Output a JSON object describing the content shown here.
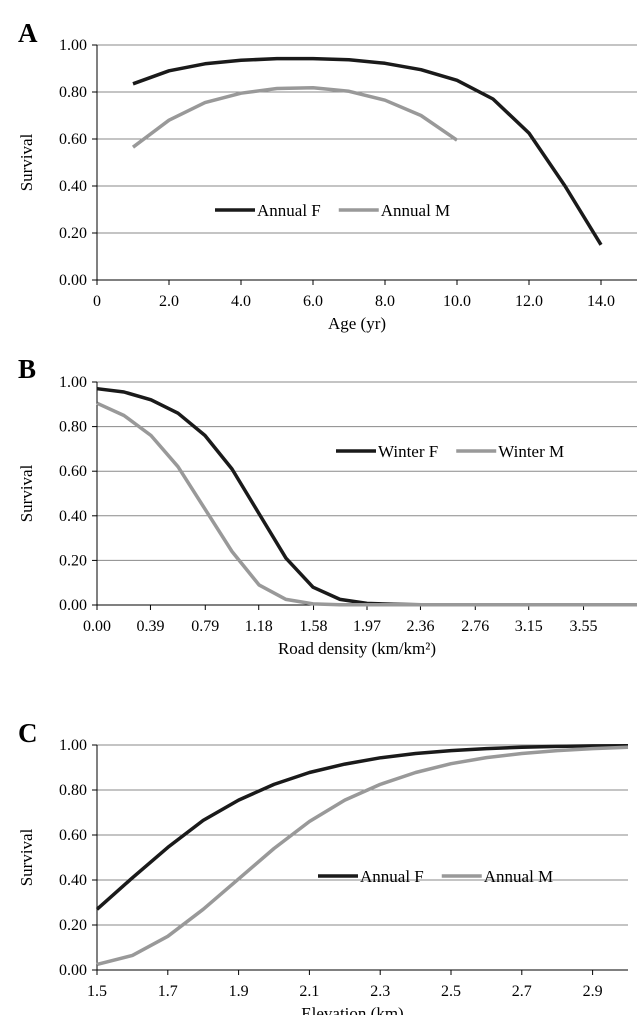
{
  "colors": {
    "female": "#1a1a1a",
    "male": "#999999",
    "grid": "#8a8a8a",
    "axis": "#000000"
  },
  "chart_data": [
    {
      "panel_label": "A",
      "type": "line",
      "xlabel": "Age (yr)",
      "ylabel": "Survival",
      "xlim": [
        0,
        15
      ],
      "ylim": [
        0,
        1
      ],
      "x_tick_values": [
        0,
        2,
        4,
        6,
        8,
        10,
        12,
        14
      ],
      "x_tick_labels": [
        "0",
        "2.0",
        "4.0",
        "6.0",
        "8.0",
        "10.0",
        "12.0",
        "14.0"
      ],
      "y_tick_values": [
        0,
        0.2,
        0.4,
        0.6,
        0.8,
        1.0
      ],
      "y_tick_labels": [
        "0.00",
        "0.20",
        "0.40",
        "0.60",
        "0.80",
        "1.00"
      ],
      "grid": true,
      "legend_position": "center",
      "series": [
        {
          "name": "Annual F",
          "color": "#1a1a1a",
          "x": [
            1,
            2,
            3,
            4,
            5,
            6,
            7,
            8,
            9,
            10,
            11,
            12,
            13,
            14
          ],
          "y": [
            0.835,
            0.89,
            0.92,
            0.935,
            0.942,
            0.942,
            0.937,
            0.922,
            0.895,
            0.85,
            0.77,
            0.625,
            0.4,
            0.15
          ]
        },
        {
          "name": "Annual M",
          "color": "#999999",
          "x": [
            1,
            2,
            3,
            4,
            5,
            6,
            7,
            8,
            9,
            10
          ],
          "y": [
            0.565,
            0.68,
            0.755,
            0.795,
            0.815,
            0.818,
            0.803,
            0.765,
            0.7,
            0.595
          ]
        }
      ]
    },
    {
      "panel_label": "B",
      "type": "line",
      "xlabel": "Road density (km/km²)",
      "ylabel": "Survival",
      "xlim": [
        0,
        3.94
      ],
      "ylim": [
        0,
        1
      ],
      "x_tick_values": [
        0,
        0.39,
        0.79,
        1.18,
        1.58,
        1.97,
        2.36,
        2.76,
        3.15,
        3.55
      ],
      "x_tick_labels": [
        "0.00",
        "0.39",
        "0.79",
        "1.18",
        "1.58",
        "1.97",
        "2.36",
        "2.76",
        "3.15",
        "3.55"
      ],
      "y_tick_values": [
        0,
        0.2,
        0.4,
        0.6,
        0.8,
        1.0
      ],
      "y_tick_labels": [
        "0.00",
        "0.20",
        "0.40",
        "0.60",
        "0.80",
        "1.00"
      ],
      "grid": true,
      "legend_position": "top-right",
      "series": [
        {
          "name": "Winter F",
          "color": "#1a1a1a",
          "x": [
            0,
            0.197,
            0.394,
            0.591,
            0.788,
            0.985,
            1.182,
            1.379,
            1.576,
            1.773,
            1.97,
            2.167,
            2.364,
            2.561,
            2.758,
            2.955,
            3.152,
            3.349,
            3.546,
            3.743,
            3.94
          ],
          "y": [
            0.97,
            0.955,
            0.92,
            0.86,
            0.76,
            0.61,
            0.41,
            0.21,
            0.08,
            0.025,
            0.007,
            0.003,
            0.001,
            0.001,
            0.001,
            0.001,
            0.001,
            0.001,
            0.001,
            0.001,
            0.001
          ]
        },
        {
          "name": "Winter M",
          "color": "#999999",
          "x": [
            0,
            0.197,
            0.394,
            0.591,
            0.788,
            0.985,
            1.182,
            1.379,
            1.576,
            1.773,
            1.97,
            2.167,
            2.364,
            2.561,
            2.758,
            2.955,
            3.152,
            3.349,
            3.546,
            3.743,
            3.94
          ],
          "y": [
            0.905,
            0.85,
            0.76,
            0.62,
            0.43,
            0.24,
            0.09,
            0.025,
            0.005,
            0.001,
            0.001,
            0.001,
            0.001,
            0.001,
            0.001,
            0.001,
            0.001,
            0.001,
            0.001,
            0.001,
            0.001
          ]
        }
      ]
    },
    {
      "panel_label": "C",
      "type": "line",
      "xlabel": "Elevation (km)",
      "ylabel": "Survival",
      "xlim": [
        1.5,
        3.0
      ],
      "ylim": [
        0,
        1
      ],
      "x_tick_values": [
        1.5,
        1.7,
        1.9,
        2.1,
        2.3,
        2.5,
        2.7,
        2.9
      ],
      "x_tick_labels": [
        "1.5",
        "1.7",
        "1.9",
        "2.1",
        "2.3",
        "2.5",
        "2.7",
        "2.9"
      ],
      "y_tick_values": [
        0,
        0.2,
        0.4,
        0.6,
        0.8,
        1.0
      ],
      "y_tick_labels": [
        "0.00",
        "0.20",
        "0.40",
        "0.60",
        "0.80",
        "1.00"
      ],
      "grid": true,
      "legend_position": "bottom-right",
      "series": [
        {
          "name": "Annual F",
          "color": "#1a1a1a",
          "x": [
            1.5,
            1.6,
            1.7,
            1.8,
            1.9,
            2.0,
            2.1,
            2.2,
            2.3,
            2.4,
            2.5,
            2.6,
            2.7,
            2.8,
            2.9,
            3.0
          ],
          "y": [
            0.27,
            0.41,
            0.545,
            0.665,
            0.755,
            0.825,
            0.878,
            0.915,
            0.943,
            0.962,
            0.975,
            0.984,
            0.99,
            0.994,
            0.996,
            0.997
          ]
        },
        {
          "name": "Annual M",
          "color": "#999999",
          "x": [
            1.5,
            1.6,
            1.7,
            1.8,
            1.9,
            2.0,
            2.1,
            2.2,
            2.3,
            2.4,
            2.5,
            2.6,
            2.7,
            2.8,
            2.9,
            3.0
          ],
          "y": [
            0.025,
            0.065,
            0.15,
            0.27,
            0.405,
            0.54,
            0.66,
            0.755,
            0.825,
            0.878,
            0.917,
            0.944,
            0.962,
            0.975,
            0.984,
            0.99
          ]
        }
      ]
    }
  ]
}
